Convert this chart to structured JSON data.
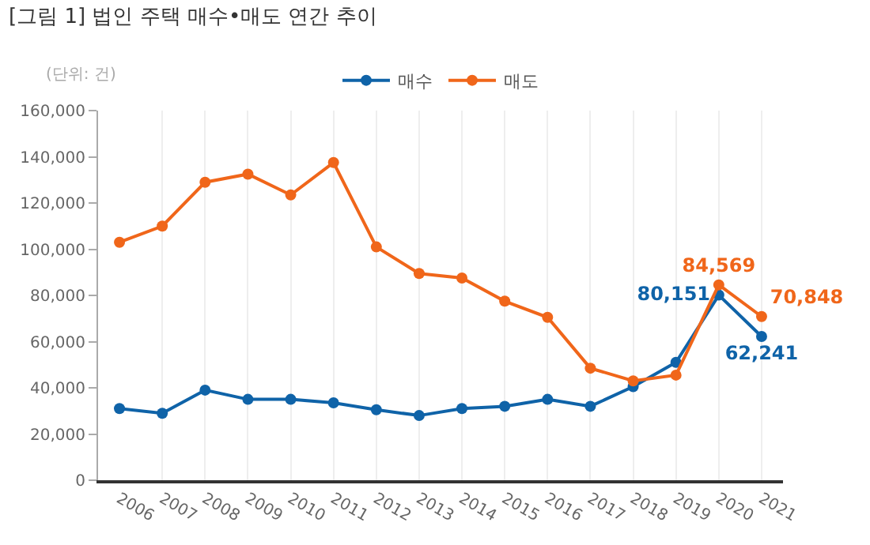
{
  "chart_data": {
    "type": "line",
    "title": "[그림 1] 법인 주택 매수•매도 연간 추이",
    "annotations": [
      "(단위: 건)"
    ],
    "categories": [
      "2006",
      "2007",
      "2008",
      "2009",
      "2010",
      "2011",
      "2012",
      "2013",
      "2014",
      "2015",
      "2016",
      "2017",
      "2018",
      "2019",
      "2020",
      "2021"
    ],
    "series": [
      {
        "name": "매수",
        "color": "#0f63a8",
        "values": [
          31000,
          29000,
          39000,
          35000,
          35000,
          33500,
          30500,
          28000,
          31000,
          32000,
          35000,
          32000,
          40500,
          51000,
          80151,
          62241
        ],
        "value_labels": [
          null,
          null,
          null,
          null,
          null,
          null,
          null,
          null,
          null,
          null,
          null,
          null,
          null,
          null,
          "80,151",
          "62,241"
        ]
      },
      {
        "name": "매도",
        "color": "#f0661a",
        "values": [
          103000,
          110000,
          129000,
          132500,
          123500,
          137500,
          101000,
          89500,
          87500,
          77500,
          70500,
          48500,
          43000,
          45500,
          84569,
          70848
        ],
        "value_labels": [
          null,
          null,
          null,
          null,
          null,
          null,
          null,
          null,
          null,
          null,
          null,
          null,
          null,
          null,
          "84,569",
          "70,848"
        ]
      }
    ],
    "ylim": [
      0,
      160000
    ],
    "yticks": [
      {
        "value": 0,
        "label": "0"
      },
      {
        "value": 20000,
        "label": "20,000"
      },
      {
        "value": 40000,
        "label": "40,000"
      },
      {
        "value": 60000,
        "label": "60,000"
      },
      {
        "value": 80000,
        "label": "80,000"
      },
      {
        "value": 100000,
        "label": "100,000"
      },
      {
        "value": 120000,
        "label": "120,000"
      },
      {
        "value": 140000,
        "label": "140,000"
      },
      {
        "value": 160000,
        "label": "160,000"
      }
    ],
    "grid": "x",
    "legend": "top",
    "marker": "circle",
    "line_style": "solid"
  }
}
